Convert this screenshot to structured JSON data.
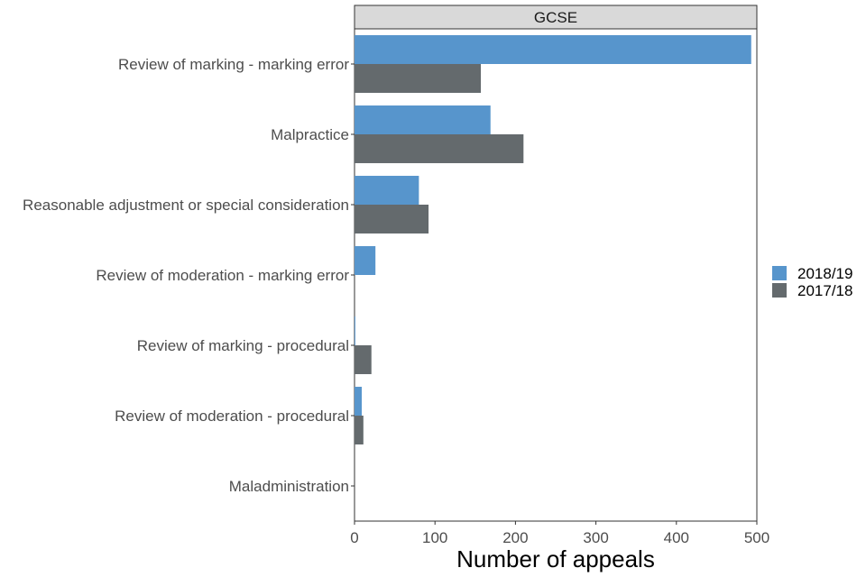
{
  "chart_data": {
    "type": "bar",
    "orientation": "horizontal",
    "facet": "GCSE",
    "xlabel": "Number of appeals",
    "ylabel": "",
    "xlim": [
      0,
      500
    ],
    "xticks": [
      0,
      100,
      200,
      300,
      400,
      500
    ],
    "categories": [
      "Review of marking - marking error",
      "Malpractice",
      "Reasonable adjustment or special consideration",
      "Review of moderation - marking error",
      "Review of marking - procedural",
      "Review of moderation - procedural",
      "Maladministration"
    ],
    "series": [
      {
        "name": "2018/19",
        "color": "#5795cc",
        "values": [
          493,
          169,
          80,
          26,
          1,
          9,
          0
        ]
      },
      {
        "name": "2017/18",
        "color": "#646a6d",
        "values": [
          157,
          210,
          92,
          0,
          21,
          11,
          0
        ]
      }
    ],
    "legend_position": "right",
    "grid": false
  }
}
